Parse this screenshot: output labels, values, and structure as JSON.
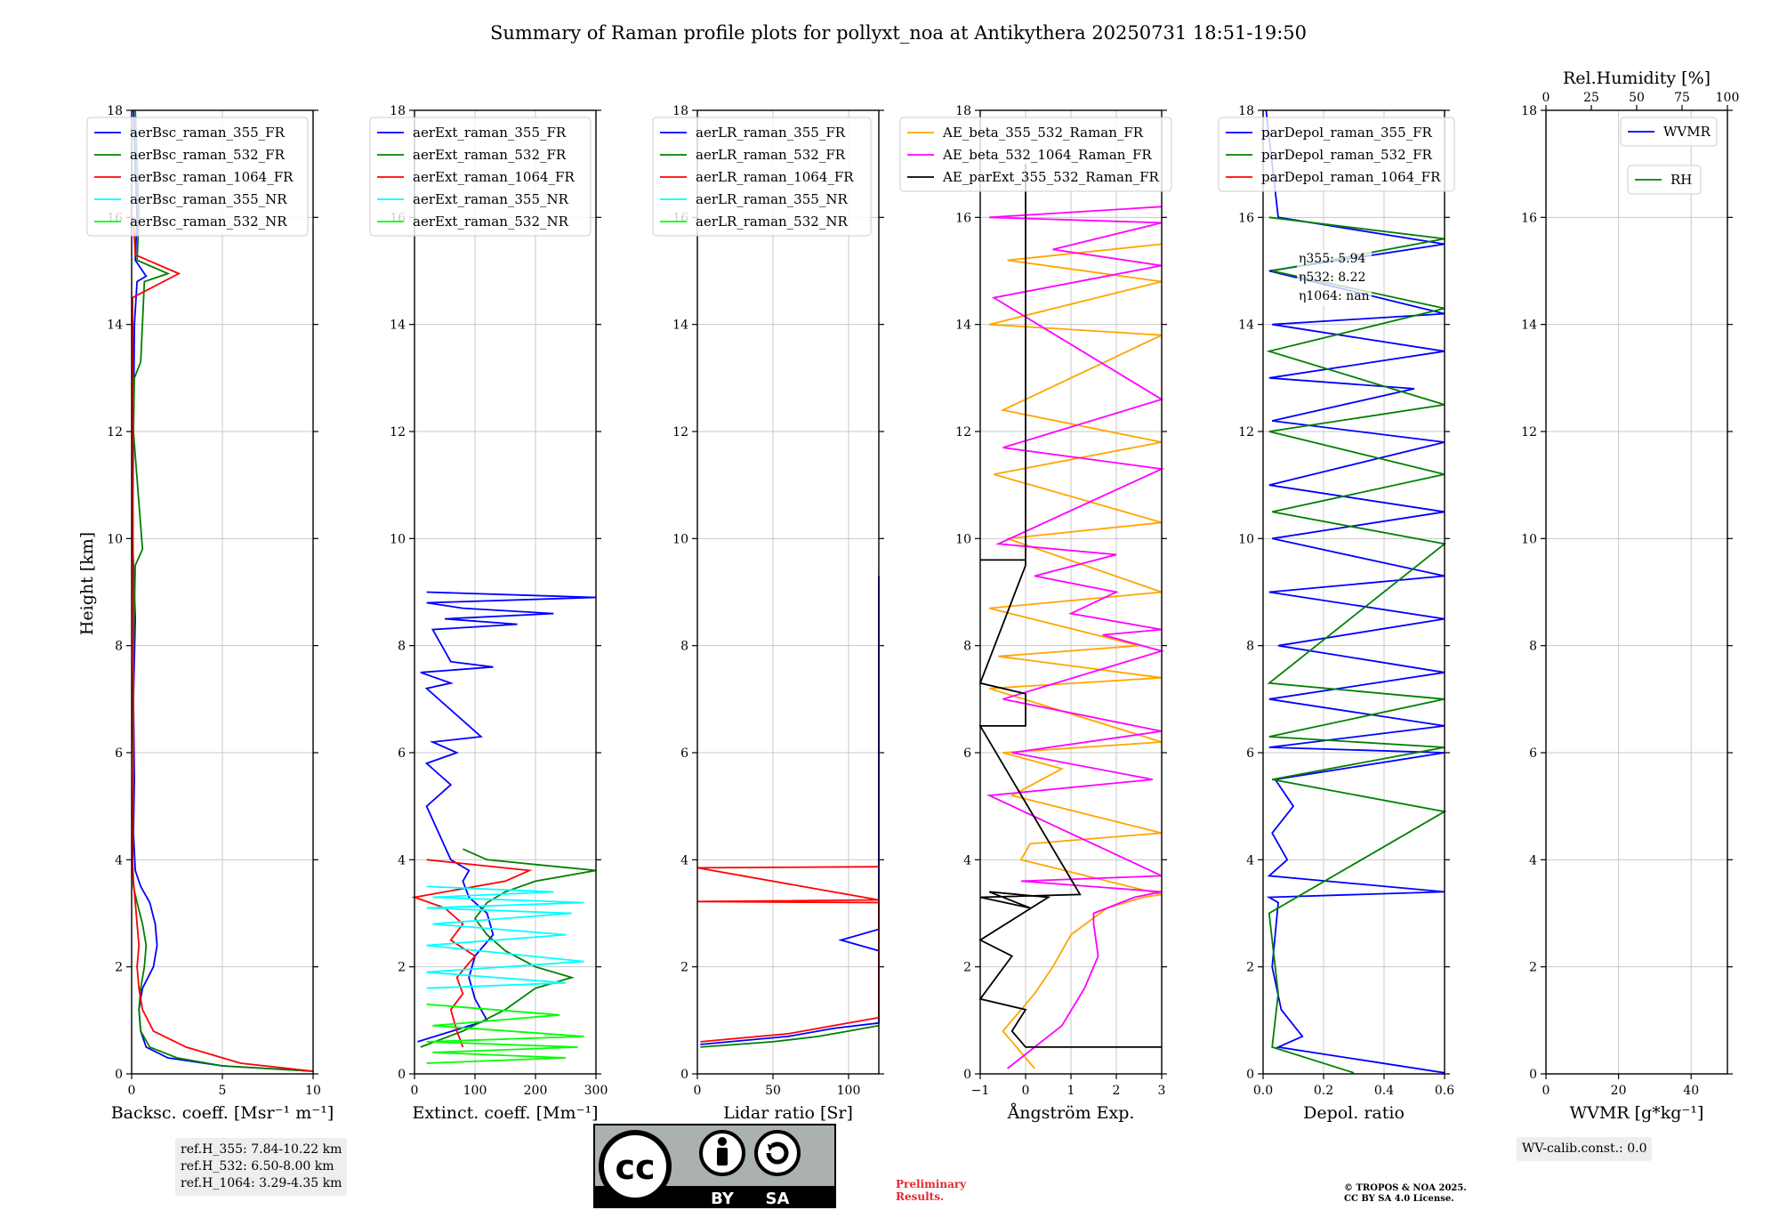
{
  "figure": {
    "title": "Summary of Raman profile plots for pollyxt_noa at Antikythera 20250731 18:51-19:50",
    "ylabel": "Height [km]",
    "ref_heights": [
      "ref.H_355: 7.84-10.22 km",
      "ref.H_532: 6.50-8.00 km",
      "ref.H_1064: 3.29-4.35 km"
    ],
    "eta": {
      "eta355": "η355: 5.94",
      "eta532": "η532: 8.22",
      "eta1064": "η1064: nan"
    },
    "wv_calib": "WV-calib.const.: 0.0",
    "preliminary": [
      "Preliminary",
      "Results."
    ],
    "copyright": [
      "© TROPOS & NOA 2025.",
      "CC BY SA 4.0 License."
    ],
    "license_badge": {
      "cc": "cc",
      "by": "BY",
      "sa": "SA"
    }
  },
  "chart_data": [
    {
      "type": "line",
      "xlabel": "Backsc. coeff. [Msr⁻¹ m⁻¹]",
      "xlim": [
        0,
        10
      ],
      "ylim": [
        0,
        18
      ],
      "xticks": [
        "0",
        "5",
        "10"
      ],
      "yticks": [
        "0",
        "2",
        "4",
        "6",
        "8",
        "10",
        "12",
        "14",
        "16",
        "18"
      ],
      "legend": [
        "aerBsc_raman_355_FR",
        "aerBsc_raman_532_FR",
        "aerBsc_raman_1064_FR",
        "aerBsc_raman_355_NR",
        "aerBsc_raman_532_NR"
      ],
      "series": [
        {
          "name": "aerBsc_raman_355_FR",
          "color": "#0000ff",
          "x": [
            10,
            5,
            2,
            0.8,
            0.5,
            0.4,
            0.6,
            1.2,
            1.4,
            1.3,
            1.0,
            0.5,
            0.2,
            0.1,
            0.15,
            0.1,
            0.2,
            0.05,
            0.1,
            0.15,
            0.3,
            0.8,
            0.2,
            0.3,
            0.1
          ],
          "y": [
            0.05,
            0.15,
            0.3,
            0.5,
            0.8,
            1.2,
            1.6,
            2.0,
            2.4,
            2.8,
            3.2,
            3.5,
            3.8,
            4.5,
            5.5,
            7.0,
            8.5,
            10,
            12,
            14,
            14.8,
            14.9,
            15.2,
            16,
            18
          ]
        },
        {
          "name": "aerBsc_raman_532_FR",
          "color": "#008000",
          "x": [
            10,
            5,
            2.5,
            1.0,
            0.5,
            0.4,
            0.5,
            0.7,
            0.8,
            0.6,
            0.3,
            0.1,
            0.05,
            0.1,
            0.05,
            0.2,
            0.6,
            0.1,
            0.15,
            0.5,
            0.7,
            2.0,
            0.3,
            0.4,
            0.2
          ],
          "y": [
            0.05,
            0.15,
            0.3,
            0.5,
            0.8,
            1.2,
            1.6,
            2.0,
            2.4,
            2.8,
            3.2,
            3.5,
            4.0,
            5.5,
            7.0,
            9.5,
            9.8,
            12,
            13,
            13.3,
            14.8,
            14.95,
            15.2,
            16,
            18
          ]
        },
        {
          "name": "aerBsc_raman_1064_FR",
          "color": "#ff0000",
          "x": [
            10,
            6,
            3,
            1.2,
            0.6,
            0.4,
            0.3,
            0.4,
            0.3,
            0.2,
            0.1,
            0.05,
            0.1,
            0.05,
            2.6,
            0.2,
            0.1
          ],
          "y": [
            0.05,
            0.2,
            0.5,
            0.8,
            1.2,
            1.6,
            2.0,
            2.4,
            2.8,
            3.2,
            3.6,
            4.0,
            6.0,
            14.5,
            14.95,
            15.3,
            16
          ]
        },
        {
          "name": "aerBsc_raman_355_NR",
          "color": "#00ffff",
          "x": [],
          "y": []
        },
        {
          "name": "aerBsc_raman_532_NR",
          "color": "#00ff00",
          "x": [],
          "y": []
        }
      ]
    },
    {
      "type": "line",
      "xlabel": "Extinct. coeff. [Mm⁻¹]",
      "xlim": [
        0,
        300
      ],
      "ylim": [
        0,
        18
      ],
      "xticks": [
        "0",
        "100",
        "200",
        "300"
      ],
      "yticks": [
        "0",
        "2",
        "4",
        "6",
        "8",
        "10",
        "12",
        "14",
        "16",
        "18"
      ],
      "legend": [
        "aerExt_raman_355_FR",
        "aerExt_raman_532_FR",
        "aerExt_raman_1064_FR",
        "aerExt_raman_355_NR",
        "aerExt_raman_532_NR"
      ],
      "series": [
        {
          "name": "aerExt_raman_355_FR",
          "color": "#0000ff",
          "x": [
            5,
            120,
            100,
            90,
            100,
            130,
            120,
            90,
            80,
            90,
            60,
            40,
            20,
            60,
            20,
            70,
            30,
            110,
            20,
            60,
            10,
            130,
            60,
            30,
            170,
            50,
            230,
            80,
            20,
            300,
            20
          ],
          "y": [
            0.6,
            1.0,
            1.4,
            1.8,
            2.2,
            2.6,
            3.0,
            3.3,
            3.6,
            3.8,
            4.0,
            4.5,
            5.0,
            5.4,
            5.8,
            6.0,
            6.2,
            6.3,
            7.2,
            7.3,
            7.5,
            7.6,
            7.7,
            8.3,
            8.4,
            8.5,
            8.6,
            8.7,
            8.8,
            8.9,
            9.0
          ]
        },
        {
          "name": "aerExt_raman_532_FR",
          "color": "#008000",
          "x": [
            10,
            80,
            150,
            200,
            260,
            200,
            150,
            120,
            100,
            120,
            150,
            200,
            300,
            120,
            80
          ],
          "y": [
            0.5,
            0.8,
            1.2,
            1.6,
            1.8,
            2.0,
            2.3,
            2.6,
            2.9,
            3.2,
            3.4,
            3.6,
            3.8,
            4.0,
            4.2
          ]
        },
        {
          "name": "aerExt_raman_1064_FR",
          "color": "#ff0000",
          "x": [
            80,
            70,
            60,
            80,
            70,
            100,
            60,
            80,
            50,
            0,
            150,
            190,
            20
          ],
          "y": [
            0.5,
            0.8,
            1.2,
            1.5,
            1.8,
            2.2,
            2.5,
            2.8,
            3.1,
            3.3,
            3.6,
            3.8,
            4.0
          ]
        },
        {
          "name": "aerExt_raman_355_NR",
          "color": "#00ffff",
          "x": [
            20,
            250,
            20,
            280,
            20,
            250,
            30,
            260,
            20,
            280,
            30,
            230,
            20
          ],
          "y": [
            1.6,
            1.7,
            1.9,
            2.1,
            2.4,
            2.6,
            2.8,
            3.0,
            3.1,
            3.2,
            3.3,
            3.4,
            3.5
          ]
        },
        {
          "name": "aerExt_raman_532_NR",
          "color": "#00ff00",
          "x": [
            20,
            250,
            30,
            270,
            20,
            280,
            30,
            240,
            20
          ],
          "y": [
            0.2,
            0.3,
            0.4,
            0.5,
            0.6,
            0.7,
            0.9,
            1.1,
            1.3
          ]
        }
      ]
    },
    {
      "type": "line",
      "xlabel": "Lidar ratio [Sr]",
      "xlim": [
        0,
        120
      ],
      "ylim": [
        0,
        18
      ],
      "xticks": [
        "0",
        "50",
        "100"
      ],
      "yticks": [
        "0",
        "2",
        "4",
        "6",
        "8",
        "10",
        "12",
        "14",
        "16",
        "18"
      ],
      "legend": [
        "aerLR_raman_355_FR",
        "aerLR_raman_532_FR",
        "aerLR_raman_1064_FR",
        "aerLR_raman_355_NR",
        "aerLR_raman_532_NR"
      ],
      "series": [
        {
          "name": "aerLR_raman_355_FR",
          "color": "#0000ff",
          "x": [
            2,
            60,
            90,
            120,
            120,
            95,
            120,
            120,
            120,
            120,
            120,
            120,
            120,
            120,
            120,
            120,
            120,
            120,
            120,
            120,
            120,
            120,
            120,
            120,
            120
          ],
          "y": [
            0.55,
            0.7,
            0.85,
            0.95,
            2.3,
            2.5,
            2.7,
            3.4,
            4.4,
            4.8,
            5.0,
            5.2,
            5.7,
            5.9,
            6.0,
            6.3,
            7.3,
            7.5,
            7.8,
            8.2,
            8.4,
            8.9,
            9.1,
            9.3,
            9.3
          ]
        },
        {
          "name": "aerLR_raman_532_FR",
          "color": "#008000",
          "x": [
            2,
            50,
            80,
            100,
            120
          ],
          "y": [
            0.5,
            0.6,
            0.7,
            0.8,
            0.9
          ]
        },
        {
          "name": "aerLR_raman_1064_FR",
          "color": "#ff0000",
          "x": [
            2,
            60,
            90,
            120,
            120,
            0,
            120,
            0,
            120
          ],
          "y": [
            0.6,
            0.75,
            0.9,
            1.05,
            3.2,
            3.22,
            3.25,
            3.85,
            3.87
          ]
        },
        {
          "name": "aerLR_raman_355_NR",
          "color": "#00ffff",
          "x": [],
          "y": []
        },
        {
          "name": "aerLR_raman_532_NR",
          "color": "#00ff00",
          "x": [],
          "y": []
        }
      ]
    },
    {
      "type": "line",
      "xlabel": "Ångström Exp.",
      "xlim": [
        -1,
        3
      ],
      "ylim": [
        0,
        18
      ],
      "xticks": [
        "−1",
        "0",
        "1",
        "2",
        "3"
      ],
      "yticks": [
        "0",
        "2",
        "4",
        "6",
        "8",
        "10",
        "12",
        "14",
        "16",
        "18"
      ],
      "legend": [
        "AE_beta_355_532_Raman_FR",
        "AE_beta_532_1064_Raman_FR",
        "AE_parExt_355_532_Raman_FR"
      ],
      "series": [
        {
          "name": "AE_beta_355_532_Raman_FR",
          "color": "#ffa500",
          "x": [
            0.2,
            -0.5,
            0.2,
            0.6,
            1.0,
            1.8,
            2.6,
            3.0,
            -0.1,
            0.1,
            3.0,
            -0.3,
            0.8,
            -0.5,
            3.0,
            -0.8,
            3.0,
            -0.6,
            2.5,
            -0.8,
            3.0,
            -0.4,
            3.0,
            -0.7,
            3.0,
            -0.5,
            3.0,
            -0.8,
            3.0,
            -0.4,
            3.0
          ],
          "y": [
            0.1,
            0.8,
            1.5,
            2.0,
            2.6,
            3.1,
            3.3,
            3.35,
            4.0,
            4.3,
            4.5,
            5.2,
            5.7,
            6.0,
            6.2,
            7.2,
            7.4,
            7.8,
            8.0,
            8.7,
            9.0,
            10.0,
            10.3,
            11.2,
            11.8,
            12.4,
            13.8,
            14.0,
            14.8,
            15.2,
            15.5
          ]
        },
        {
          "name": "AE_beta_532_1064_Raman_FR",
          "color": "#ff00ff",
          "x": [
            -0.4,
            0.8,
            1.3,
            1.6,
            1.5,
            1.5,
            2.4,
            3.0,
            -0.1,
            3.0,
            -0.8,
            2.8,
            -0.3,
            3.0,
            -0.5,
            3.0,
            1.7,
            3.0,
            1.0,
            2.0,
            0.2,
            2.0,
            -0.6,
            3.0,
            -0.5,
            3.0,
            -0.7,
            3.0,
            0.6,
            3.0,
            -0.8,
            3.0
          ],
          "y": [
            0.1,
            0.9,
            1.6,
            2.2,
            2.8,
            3.0,
            3.3,
            3.4,
            3.6,
            3.7,
            5.2,
            5.5,
            6.0,
            6.4,
            7.0,
            7.9,
            8.2,
            8.3,
            8.6,
            9.0,
            9.3,
            9.7,
            9.9,
            11.3,
            11.7,
            12.6,
            14.5,
            15.1,
            15.4,
            15.9,
            16.0,
            16.2
          ]
        },
        {
          "name": "AE_parExt_355_532_Raman_FR",
          "color": "#000000",
          "x": [
            3.0,
            0.0,
            -0.3,
            0.0,
            -1.0,
            -0.3,
            -1.0,
            0.5,
            -0.8,
            0.1,
            -1.0,
            1.2,
            -1.0,
            0.0,
            0.0,
            -1.0,
            0.0,
            0.0,
            -1.0,
            0.0,
            0.0
          ],
          "y": [
            0.5,
            0.5,
            0.8,
            1.2,
            1.4,
            2.2,
            2.5,
            3.3,
            3.4,
            3.1,
            3.3,
            3.35,
            6.5,
            6.5,
            7.1,
            7.3,
            9.5,
            9.6,
            9.6,
            9.6,
            17
          ]
        }
      ]
    },
    {
      "type": "line",
      "xlabel": "Depol. ratio",
      "xlim": [
        0,
        0.6
      ],
      "ylim": [
        0,
        18
      ],
      "xticks": [
        "0.0",
        "0.2",
        "0.4",
        "0.6"
      ],
      "yticks": [
        "0",
        "2",
        "4",
        "6",
        "8",
        "10",
        "12",
        "14",
        "16",
        "18"
      ],
      "legend": [
        "parDepol_raman_355_FR",
        "parDepol_raman_532_FR",
        "parDepol_raman_1064_FR"
      ],
      "series": [
        {
          "name": "parDepol_raman_355_FR",
          "color": "#0000ff",
          "x": [
            0.6,
            0.05,
            0.13,
            0.06,
            0.03,
            0.05,
            0.02,
            0.6,
            0.02,
            0.08,
            0.03,
            0.1,
            0.04,
            0.6,
            0.02,
            0.6,
            0.02,
            0.6,
            0.05,
            0.6,
            0.02,
            0.6,
            0.03,
            0.6,
            0.02,
            0.6,
            0.03,
            0.5,
            0.02,
            0.6,
            0.03,
            0.6,
            0.02,
            0.6,
            0.05,
            0.01
          ],
          "y": [
            0.02,
            0.5,
            0.7,
            1.2,
            2.0,
            3.2,
            3.3,
            3.4,
            3.7,
            4.0,
            4.5,
            5.0,
            5.5,
            6.0,
            6.1,
            6.5,
            7.0,
            7.5,
            8.0,
            8.5,
            9.0,
            9.3,
            10.0,
            10.5,
            11.0,
            11.8,
            12.2,
            12.8,
            13.0,
            13.5,
            14.0,
            14.2,
            15.0,
            15.5,
            16.0,
            18
          ]
        },
        {
          "name": "parDepol_raman_532_FR",
          "color": "#008000",
          "x": [
            0.3,
            0.03,
            0.05,
            0.02,
            0.6,
            0.03,
            0.6,
            0.02,
            0.6,
            0.02,
            0.6,
            0.03,
            0.6,
            0.02,
            0.6,
            0.02,
            0.6,
            0.03,
            0.6,
            0.02
          ],
          "y": [
            0.02,
            0.5,
            1.5,
            3.0,
            4.9,
            5.5,
            6.1,
            6.3,
            7.0,
            7.3,
            9.9,
            10.5,
            11.2,
            12.0,
            12.5,
            13.5,
            14.3,
            15.0,
            15.6,
            16
          ]
        },
        {
          "name": "parDepol_raman_1064_FR",
          "color": "#ff0000",
          "x": [],
          "y": []
        }
      ]
    },
    {
      "type": "line",
      "xlabel": "WVMR [g*kg⁻¹]",
      "x2label": "Rel.Humidity [%]",
      "xlim": [
        0,
        50
      ],
      "x2lim": [
        0,
        100
      ],
      "ylim": [
        0,
        18
      ],
      "xticks": [
        "0",
        "20",
        "40"
      ],
      "x2ticks": [
        "0",
        "25",
        "50",
        "75",
        "100"
      ],
      "yticks": [
        "0",
        "2",
        "4",
        "6",
        "8",
        "10",
        "12",
        "14",
        "16",
        "18"
      ],
      "legend": [
        "WVMR",
        "RH"
      ],
      "series": [
        {
          "name": "WVMR",
          "color": "#0000ff",
          "x": [],
          "y": []
        },
        {
          "name": "RH",
          "color": "#008000",
          "x": [],
          "y": []
        }
      ]
    }
  ]
}
